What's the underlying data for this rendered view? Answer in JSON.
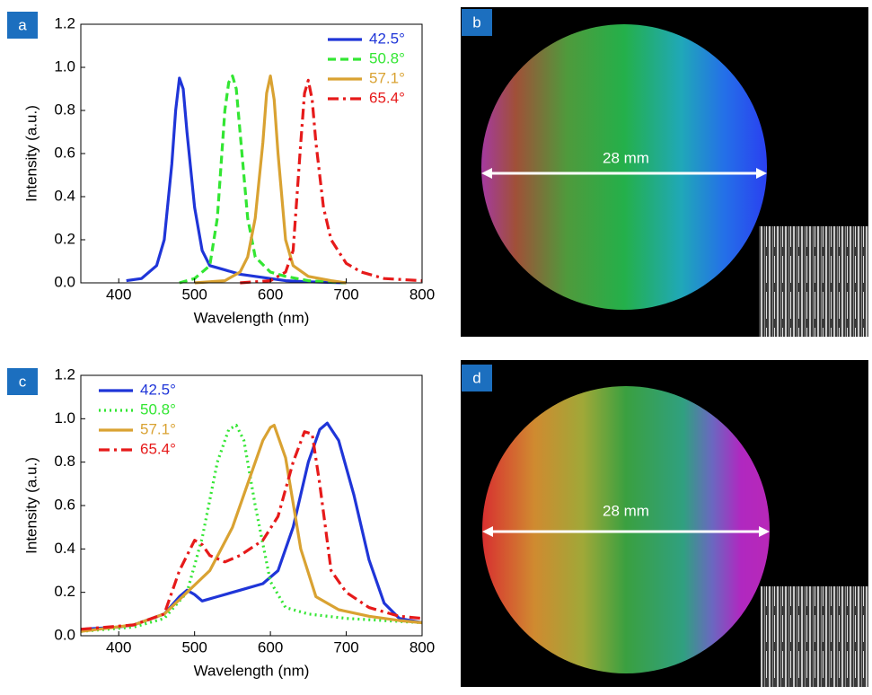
{
  "chart_data": [
    {
      "type": "line",
      "panel_label": "a",
      "xlabel": "Wavelength (nm)",
      "ylabel": "Intensity (a.u.)",
      "xlim": [
        350,
        800
      ],
      "xticks": [
        400,
        500,
        600,
        700,
        800
      ],
      "ylim": [
        0,
        1.2
      ],
      "yticks": [
        {
          "value": 0,
          "label": "0.0"
        },
        0.2,
        0.4,
        0.6,
        0.8,
        {
          "value": 1,
          "label": "1.0"
        },
        1.2
      ],
      "legend": "upper right",
      "series": [
        {
          "name": "42.5°",
          "color": "#1f35d8",
          "style": "solid",
          "x": [
            410,
            430,
            450,
            460,
            470,
            475,
            480,
            485,
            490,
            500,
            510,
            520,
            540,
            560,
            580,
            600,
            620,
            650,
            700
          ],
          "values": [
            0.01,
            0.02,
            0.08,
            0.2,
            0.55,
            0.8,
            0.95,
            0.9,
            0.7,
            0.35,
            0.15,
            0.08,
            0.06,
            0.04,
            0.03,
            0.02,
            0.01,
            0.005,
            0
          ]
        },
        {
          "name": "50.8°",
          "color": "#33e633",
          "style": "dashed",
          "x": [
            480,
            500,
            520,
            530,
            540,
            545,
            550,
            555,
            560,
            570,
            580,
            600,
            620,
            650,
            700
          ],
          "values": [
            0,
            0.02,
            0.08,
            0.3,
            0.8,
            0.93,
            0.96,
            0.9,
            0.7,
            0.3,
            0.12,
            0.05,
            0.03,
            0.01,
            0
          ]
        },
        {
          "name": "57.1°",
          "color": "#d9a232",
          "style": "solid",
          "x": [
            500,
            540,
            560,
            570,
            580,
            590,
            595,
            600,
            605,
            610,
            620,
            630,
            650,
            680,
            700
          ],
          "values": [
            0,
            0.01,
            0.05,
            0.12,
            0.3,
            0.65,
            0.88,
            0.96,
            0.85,
            0.6,
            0.2,
            0.08,
            0.03,
            0.01,
            0
          ]
        },
        {
          "name": "65.4°",
          "color": "#e61a1a",
          "style": "dashdot",
          "x": [
            560,
            600,
            620,
            630,
            640,
            645,
            650,
            655,
            660,
            670,
            680,
            700,
            720,
            750,
            800
          ],
          "values": [
            0,
            0.01,
            0.05,
            0.15,
            0.65,
            0.88,
            0.94,
            0.85,
            0.65,
            0.35,
            0.2,
            0.09,
            0.05,
            0.02,
            0.01
          ]
        }
      ]
    },
    {
      "type": "line",
      "panel_label": "c",
      "xlabel": "Wavelength (nm)",
      "ylabel": "Intensity (a.u.)",
      "xlim": [
        350,
        800
      ],
      "xticks": [
        400,
        500,
        600,
        700,
        800
      ],
      "ylim": [
        0,
        1.2
      ],
      "yticks": [
        {
          "value": 0,
          "label": "0.0"
        },
        0.2,
        0.4,
        0.6,
        0.8,
        {
          "value": 1,
          "label": "1.0"
        },
        1.2
      ],
      "legend": "upper left",
      "series": [
        {
          "name": "42.5°",
          "color": "#1f35d8",
          "style": "solid",
          "x": [
            350,
            400,
            420,
            460,
            480,
            490,
            500,
            510,
            530,
            560,
            590,
            610,
            630,
            650,
            665,
            675,
            690,
            710,
            730,
            750,
            770,
            800
          ],
          "values": [
            0.03,
            0.04,
            0.05,
            0.1,
            0.18,
            0.21,
            0.19,
            0.16,
            0.18,
            0.21,
            0.24,
            0.3,
            0.5,
            0.8,
            0.95,
            0.98,
            0.9,
            0.65,
            0.35,
            0.15,
            0.08,
            0.06
          ]
        },
        {
          "name": "50.8°",
          "color": "#33e633",
          "style": "dotted",
          "x": [
            350,
            420,
            460,
            490,
            510,
            530,
            545,
            555,
            565,
            580,
            600,
            620,
            650,
            700,
            750,
            800
          ],
          "values": [
            0.02,
            0.04,
            0.08,
            0.2,
            0.45,
            0.8,
            0.95,
            0.97,
            0.9,
            0.6,
            0.25,
            0.13,
            0.1,
            0.08,
            0.07,
            0.06
          ]
        },
        {
          "name": "57.1°",
          "color": "#d9a232",
          "style": "solid",
          "x": [
            350,
            420,
            460,
            490,
            520,
            550,
            570,
            590,
            600,
            605,
            620,
            640,
            660,
            690,
            730,
            770,
            800
          ],
          "values": [
            0.02,
            0.05,
            0.1,
            0.2,
            0.3,
            0.5,
            0.7,
            0.9,
            0.96,
            0.97,
            0.82,
            0.4,
            0.18,
            0.12,
            0.09,
            0.07,
            0.06
          ]
        },
        {
          "name": "65.4°",
          "color": "#e61a1a",
          "style": "dashdot",
          "x": [
            350,
            420,
            460,
            480,
            500,
            510,
            520,
            540,
            560,
            590,
            610,
            630,
            645,
            655,
            665,
            680,
            700,
            730,
            770,
            800
          ],
          "values": [
            0.03,
            0.05,
            0.1,
            0.3,
            0.44,
            0.42,
            0.37,
            0.34,
            0.37,
            0.44,
            0.55,
            0.8,
            0.94,
            0.93,
            0.7,
            0.3,
            0.2,
            0.13,
            0.09,
            0.08
          ]
        }
      ]
    }
  ],
  "panels": [
    {
      "label": "b",
      "annotation": "28 mm"
    },
    {
      "label": "d",
      "annotation": "28 mm"
    }
  ]
}
